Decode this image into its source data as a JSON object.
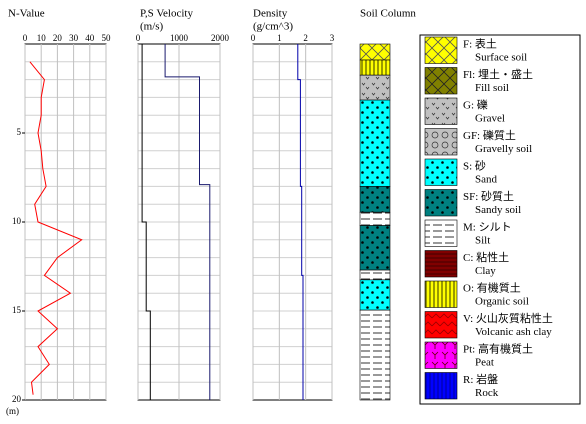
{
  "chart_data": [
    {
      "type": "line",
      "title": "N-Value",
      "ylabel": "(m)",
      "xlim": [
        0,
        50
      ],
      "xticks": [
        0,
        10,
        20,
        30,
        40,
        50
      ],
      "ylim": [
        0,
        20
      ],
      "yticks": [
        5,
        10,
        15,
        20
      ],
      "minor_yticks": [
        1,
        2,
        3,
        4,
        5,
        6,
        7,
        8,
        9,
        10,
        11,
        12,
        13,
        14,
        15,
        16,
        17,
        18,
        19
      ],
      "series": [
        {
          "color": "#ff0000",
          "depth": [
            1,
            2,
            3,
            4,
            5,
            6,
            7,
            8,
            9,
            10,
            11,
            12,
            13,
            14,
            15,
            16,
            17,
            18,
            19,
            19.7
          ],
          "values": [
            3,
            12,
            10,
            10,
            8,
            10,
            11,
            13,
            6,
            8,
            35,
            20,
            12,
            28,
            8,
            20,
            8,
            15,
            4,
            5
          ]
        }
      ]
    },
    {
      "type": "line",
      "title": "P,S Velocity",
      "subtitle": "(m/s)",
      "xlim": [
        0,
        2000
      ],
      "xticks": [
        0,
        1000,
        2000
      ],
      "ylim": [
        0,
        20
      ],
      "minor_yticks": [
        1,
        2,
        3,
        4,
        5,
        6,
        7,
        8,
        9,
        10,
        11,
        12,
        13,
        14,
        15,
        16,
        17,
        18,
        19
      ],
      "series": [
        {
          "color": "#1a1a6e",
          "depth": [
            0,
            1.85,
            1.85,
            7.9,
            7.9,
            20
          ],
          "values": [
            660,
            660,
            1500,
            1500,
            1750,
            1750
          ]
        },
        {
          "color": "#000000",
          "depth": [
            0,
            10,
            10,
            15,
            15,
            20
          ],
          "values": [
            100,
            100,
            200,
            200,
            300,
            300
          ]
        }
      ]
    },
    {
      "type": "line",
      "title": "Density",
      "subtitle": "(g/cm^3)",
      "xlim": [
        0,
        3
      ],
      "xticks": [
        0,
        1,
        2,
        3
      ],
      "ylim": [
        0,
        20
      ],
      "minor_yticks": [
        1,
        2,
        3,
        4,
        5,
        6,
        7,
        8,
        9,
        10,
        11,
        12,
        13,
        14,
        15,
        16,
        17,
        18,
        19
      ],
      "series": [
        {
          "color": "#0000aa",
          "depth": [
            0,
            2,
            2,
            8,
            8,
            13,
            13,
            20
          ],
          "values": [
            1.7,
            1.7,
            1.8,
            1.8,
            1.85,
            1.85,
            1.9,
            1.9
          ]
        }
      ]
    },
    {
      "type": "column",
      "title": "Soil Column",
      "ylim": [
        0,
        20
      ],
      "layers": [
        {
          "top": 0,
          "bottom": 0.9,
          "soil": 0
        },
        {
          "top": 0.9,
          "bottom": 1.75,
          "soil": 8
        },
        {
          "top": 1.75,
          "bottom": 3.15,
          "soil": 2
        },
        {
          "top": 3.15,
          "bottom": 8.0,
          "soil": 4
        },
        {
          "top": 8.0,
          "bottom": 9.45,
          "soil": 5
        },
        {
          "top": 9.45,
          "bottom": 10.2,
          "soil": 6
        },
        {
          "top": 10.2,
          "bottom": 12.7,
          "soil": 5
        },
        {
          "top": 12.7,
          "bottom": 13.25,
          "soil": 6
        },
        {
          "top": 13.25,
          "bottom": 14.95,
          "soil": 4
        },
        {
          "top": 14.95,
          "bottom": 20,
          "soil": 6
        }
      ]
    }
  ],
  "legend": {
    "items": [
      {
        "label": "F: 表土",
        "english": "Surface soil"
      },
      {
        "label": "Fl: 埋土・盛土",
        "english": "Fill soil"
      },
      {
        "label": "G: 礫",
        "english": "Gravel"
      },
      {
        "label": "GF: 礫質土",
        "english": "Gravelly soil"
      },
      {
        "label": "S: 砂",
        "english": "Sand"
      },
      {
        "label": "SF: 砂質土",
        "english": "Sandy soil"
      },
      {
        "label": "M: シルト",
        "english": "Silt"
      },
      {
        "label": "C: 粘性土",
        "english": "Clay"
      },
      {
        "label": "O: 有機質土",
        "english": "Organic soil"
      },
      {
        "label": "V: 火山灰質粘性土",
        "english": "Volcanic ash clay"
      },
      {
        "label": "Pt: 高有機質土",
        "english": "Peat"
      },
      {
        "label": "R: 岩盤",
        "english": "Rock"
      }
    ]
  }
}
